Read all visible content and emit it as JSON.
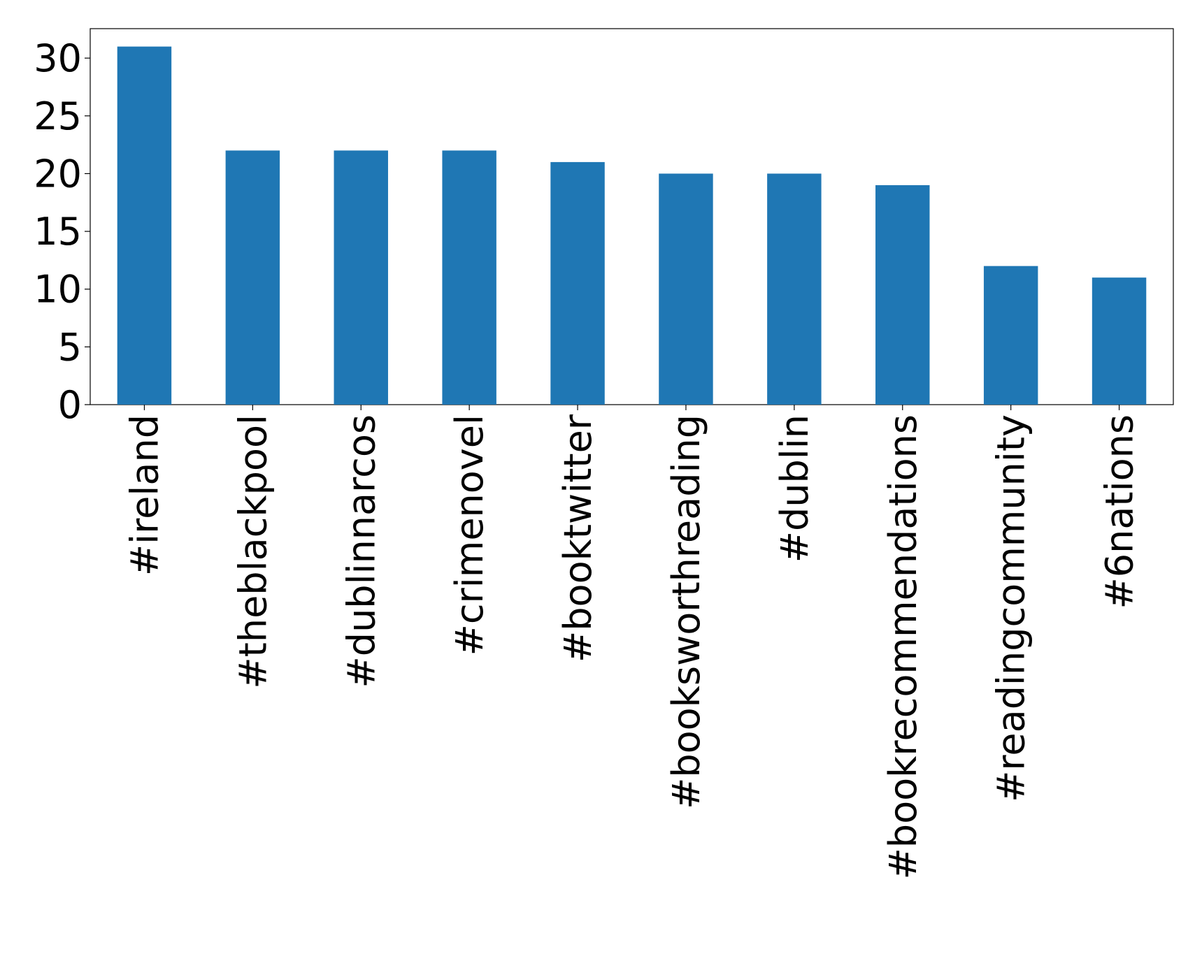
{
  "chart_data": {
    "type": "bar",
    "categories": [
      "#ireland",
      "#theblackpool",
      "#dublinnarcos",
      "#crimenovel",
      "#booktwitter",
      "#booksworthreading",
      "#dublin",
      "#bookrecommendations",
      "#readingcommunity",
      "#6nations"
    ],
    "values": [
      31,
      22,
      22,
      22,
      21,
      20,
      20,
      19,
      12,
      11
    ],
    "color": "#1f77b4",
    "ylim": [
      0,
      32.55
    ],
    "yticks": [
      0,
      5,
      10,
      15,
      20,
      25,
      30
    ],
    "grid": false
  }
}
